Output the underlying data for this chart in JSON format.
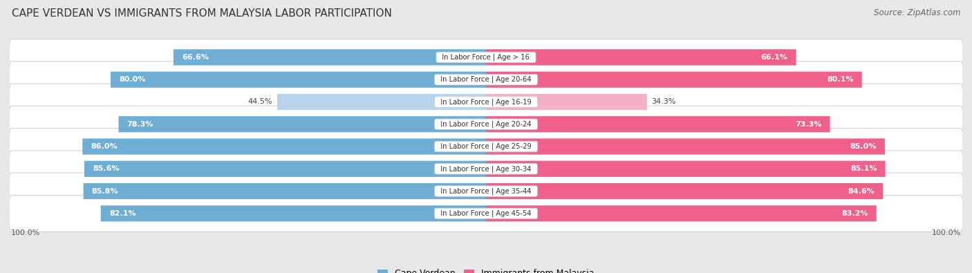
{
  "title": "CAPE VERDEAN VS IMMIGRANTS FROM MALAYSIA LABOR PARTICIPATION",
  "source": "Source: ZipAtlas.com",
  "categories": [
    "In Labor Force | Age > 16",
    "In Labor Force | Age 20-64",
    "In Labor Force | Age 16-19",
    "In Labor Force | Age 20-24",
    "In Labor Force | Age 25-29",
    "In Labor Force | Age 30-34",
    "In Labor Force | Age 35-44",
    "In Labor Force | Age 45-54"
  ],
  "cape_verdean": [
    66.6,
    80.0,
    44.5,
    78.3,
    86.0,
    85.6,
    85.8,
    82.1
  ],
  "malaysia": [
    66.1,
    80.1,
    34.3,
    73.3,
    85.0,
    85.1,
    84.6,
    83.2
  ],
  "cv_color": "#6eadd4",
  "cv_color_light": "#b8d4ea",
  "mal_color": "#f0608c",
  "mal_color_light": "#f4b0c8",
  "bg_color": "#e8e8e8",
  "row_bg_color": "#f5f5f5",
  "max_val": 100.0,
  "legend_cv": "Cape Verdean",
  "legend_mal": "Immigrants from Malaysia"
}
